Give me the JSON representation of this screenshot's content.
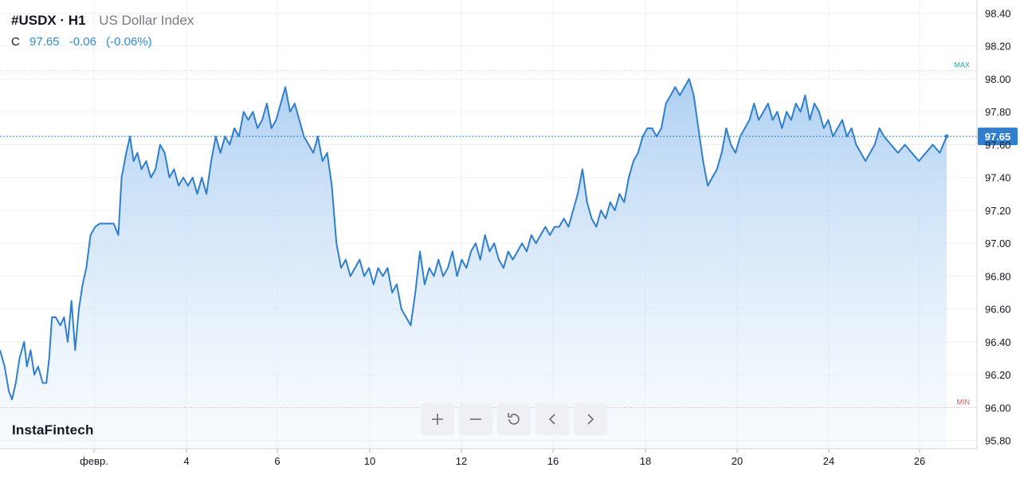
{
  "header": {
    "symbol": "#USDX · H1",
    "description": "US Dollar Index",
    "close_label": "C",
    "close_value": "97.65",
    "change": "-0.06",
    "change_pct": "(-0.06%)"
  },
  "brand": "InstaFintech",
  "controls": [
    {
      "name": "zoom-in-button",
      "icon": "plus-icon"
    },
    {
      "name": "zoom-out-button",
      "icon": "minus-icon"
    },
    {
      "name": "reset-button",
      "icon": "reset-icon"
    },
    {
      "name": "scroll-left-button",
      "icon": "chevron-left-icon"
    },
    {
      "name": "scroll-right-button",
      "icon": "chevron-right-icon"
    }
  ],
  "chart_data": {
    "type": "area",
    "ylim": [
      95.75,
      98.48
    ],
    "xlim": [
      0,
      27
    ],
    "y_ticks": [
      "95.80",
      "96.00",
      "96.20",
      "96.40",
      "96.60",
      "96.80",
      "97.00",
      "97.20",
      "97.40",
      "97.60",
      "97.80",
      "98.00",
      "98.20",
      "98.40"
    ],
    "x_ticks": [
      {
        "x": 2,
        "label": "февр."
      },
      {
        "x": 5,
        "label": "4"
      },
      {
        "x": 7,
        "label": "6"
      },
      {
        "x": 9,
        "label": "10"
      },
      {
        "x": 11,
        "label": "12"
      },
      {
        "x": 13,
        "label": "16"
      },
      {
        "x": 15,
        "label": "18"
      },
      {
        "x": 17,
        "label": "20"
      },
      {
        "x": 19,
        "label": "24"
      },
      {
        "x": 21,
        "label": "26"
      }
    ],
    "max_line": {
      "value": 98.05,
      "label": "MAX"
    },
    "min_line": {
      "value": 96.0,
      "label": "MIN"
    },
    "last_price": {
      "value": 97.65,
      "label": "97.65"
    },
    "grid": true,
    "colors": {
      "line": "#2f7fce",
      "fill": "#a9cdf2",
      "max": "#26a69a",
      "min": "#ef5350",
      "last": "#2f7fce"
    },
    "points": [
      [
        0.0,
        96.35
      ],
      [
        0.1,
        96.25
      ],
      [
        0.19,
        96.1
      ],
      [
        0.26,
        96.05
      ],
      [
        0.34,
        96.15
      ],
      [
        0.42,
        96.3
      ],
      [
        0.52,
        96.4
      ],
      [
        0.58,
        96.25
      ],
      [
        0.66,
        96.35
      ],
      [
        0.74,
        96.2
      ],
      [
        0.82,
        96.25
      ],
      [
        0.92,
        96.15
      ],
      [
        1.0,
        96.15
      ],
      [
        1.06,
        96.3
      ],
      [
        1.12,
        96.55
      ],
      [
        1.2,
        96.55
      ],
      [
        1.3,
        96.5
      ],
      [
        1.38,
        96.55
      ],
      [
        1.46,
        96.4
      ],
      [
        1.54,
        96.65
      ],
      [
        1.62,
        96.35
      ],
      [
        1.7,
        96.6
      ],
      [
        1.78,
        96.75
      ],
      [
        1.86,
        96.85
      ],
      [
        1.95,
        97.05
      ],
      [
        2.05,
        97.1
      ],
      [
        2.15,
        97.12
      ],
      [
        2.45,
        97.12
      ],
      [
        2.55,
        97.05
      ],
      [
        2.62,
        97.4
      ],
      [
        2.72,
        97.55
      ],
      [
        2.8,
        97.65
      ],
      [
        2.88,
        97.5
      ],
      [
        2.96,
        97.55
      ],
      [
        3.05,
        97.45
      ],
      [
        3.15,
        97.5
      ],
      [
        3.25,
        97.4
      ],
      [
        3.35,
        97.45
      ],
      [
        3.45,
        97.6
      ],
      [
        3.55,
        97.55
      ],
      [
        3.65,
        97.4
      ],
      [
        3.75,
        97.45
      ],
      [
        3.85,
        97.35
      ],
      [
        3.95,
        97.4
      ],
      [
        4.05,
        97.35
      ],
      [
        4.15,
        97.4
      ],
      [
        4.25,
        97.3
      ],
      [
        4.35,
        97.4
      ],
      [
        4.45,
        97.3
      ],
      [
        4.55,
        97.5
      ],
      [
        4.65,
        97.65
      ],
      [
        4.75,
        97.55
      ],
      [
        4.85,
        97.65
      ],
      [
        4.95,
        97.6
      ],
      [
        5.05,
        97.7
      ],
      [
        5.15,
        97.65
      ],
      [
        5.25,
        97.8
      ],
      [
        5.35,
        97.75
      ],
      [
        5.45,
        97.8
      ],
      [
        5.55,
        97.7
      ],
      [
        5.65,
        97.75
      ],
      [
        5.75,
        97.85
      ],
      [
        5.85,
        97.7
      ],
      [
        5.95,
        97.75
      ],
      [
        6.05,
        97.85
      ],
      [
        6.15,
        97.95
      ],
      [
        6.25,
        97.8
      ],
      [
        6.35,
        97.85
      ],
      [
        6.45,
        97.75
      ],
      [
        6.55,
        97.65
      ],
      [
        6.65,
        97.6
      ],
      [
        6.75,
        97.55
      ],
      [
        6.85,
        97.65
      ],
      [
        6.95,
        97.5
      ],
      [
        7.05,
        97.55
      ],
      [
        7.15,
        97.35
      ],
      [
        7.25,
        97.0
      ],
      [
        7.35,
        96.85
      ],
      [
        7.45,
        96.9
      ],
      [
        7.55,
        96.8
      ],
      [
        7.65,
        96.85
      ],
      [
        7.75,
        96.9
      ],
      [
        7.85,
        96.8
      ],
      [
        7.95,
        96.85
      ],
      [
        8.05,
        96.75
      ],
      [
        8.15,
        96.85
      ],
      [
        8.25,
        96.8
      ],
      [
        8.35,
        96.85
      ],
      [
        8.45,
        96.7
      ],
      [
        8.55,
        96.75
      ],
      [
        8.65,
        96.6
      ],
      [
        8.75,
        96.55
      ],
      [
        8.85,
        96.5
      ],
      [
        8.95,
        96.7
      ],
      [
        9.05,
        96.95
      ],
      [
        9.15,
        96.75
      ],
      [
        9.25,
        96.85
      ],
      [
        9.35,
        96.8
      ],
      [
        9.45,
        96.9
      ],
      [
        9.55,
        96.8
      ],
      [
        9.65,
        96.85
      ],
      [
        9.75,
        96.95
      ],
      [
        9.85,
        96.8
      ],
      [
        9.95,
        96.9
      ],
      [
        10.05,
        96.85
      ],
      [
        10.15,
        96.95
      ],
      [
        10.25,
        97.0
      ],
      [
        10.35,
        96.9
      ],
      [
        10.45,
        97.05
      ],
      [
        10.55,
        96.95
      ],
      [
        10.65,
        97.0
      ],
      [
        10.75,
        96.9
      ],
      [
        10.85,
        96.85
      ],
      [
        10.95,
        96.95
      ],
      [
        11.05,
        96.9
      ],
      [
        11.15,
        96.95
      ],
      [
        11.25,
        97.0
      ],
      [
        11.35,
        96.95
      ],
      [
        11.45,
        97.05
      ],
      [
        11.55,
        97.0
      ],
      [
        11.65,
        97.05
      ],
      [
        11.75,
        97.1
      ],
      [
        11.85,
        97.05
      ],
      [
        11.95,
        97.1
      ],
      [
        12.05,
        97.1
      ],
      [
        12.15,
        97.15
      ],
      [
        12.25,
        97.1
      ],
      [
        12.35,
        97.2
      ],
      [
        12.45,
        97.3
      ],
      [
        12.55,
        97.45
      ],
      [
        12.65,
        97.25
      ],
      [
        12.75,
        97.15
      ],
      [
        12.85,
        97.1
      ],
      [
        12.95,
        97.2
      ],
      [
        13.05,
        97.15
      ],
      [
        13.15,
        97.25
      ],
      [
        13.25,
        97.2
      ],
      [
        13.35,
        97.3
      ],
      [
        13.45,
        97.25
      ],
      [
        13.55,
        97.4
      ],
      [
        13.65,
        97.5
      ],
      [
        13.75,
        97.55
      ],
      [
        13.85,
        97.65
      ],
      [
        13.95,
        97.7
      ],
      [
        14.05,
        97.7
      ],
      [
        14.15,
        97.65
      ],
      [
        14.25,
        97.7
      ],
      [
        14.35,
        97.85
      ],
      [
        14.45,
        97.9
      ],
      [
        14.55,
        97.95
      ],
      [
        14.65,
        97.9
      ],
      [
        14.75,
        97.95
      ],
      [
        14.85,
        98.0
      ],
      [
        14.95,
        97.9
      ],
      [
        15.05,
        97.7
      ],
      [
        15.15,
        97.5
      ],
      [
        15.25,
        97.35
      ],
      [
        15.35,
        97.4
      ],
      [
        15.45,
        97.45
      ],
      [
        15.55,
        97.55
      ],
      [
        15.65,
        97.7
      ],
      [
        15.75,
        97.6
      ],
      [
        15.85,
        97.55
      ],
      [
        15.95,
        97.65
      ],
      [
        16.05,
        97.7
      ],
      [
        16.15,
        97.75
      ],
      [
        16.25,
        97.85
      ],
      [
        16.35,
        97.75
      ],
      [
        16.45,
        97.8
      ],
      [
        16.55,
        97.85
      ],
      [
        16.65,
        97.75
      ],
      [
        16.75,
        97.8
      ],
      [
        16.85,
        97.7
      ],
      [
        16.95,
        97.8
      ],
      [
        17.05,
        97.75
      ],
      [
        17.15,
        97.85
      ],
      [
        17.25,
        97.8
      ],
      [
        17.35,
        97.9
      ],
      [
        17.45,
        97.75
      ],
      [
        17.55,
        97.85
      ],
      [
        17.65,
        97.8
      ],
      [
        17.75,
        97.7
      ],
      [
        17.85,
        97.75
      ],
      [
        17.95,
        97.65
      ],
      [
        18.05,
        97.7
      ],
      [
        18.15,
        97.75
      ],
      [
        18.25,
        97.65
      ],
      [
        18.35,
        97.7
      ],
      [
        18.45,
        97.6
      ],
      [
        18.55,
        97.55
      ],
      [
        18.65,
        97.5
      ],
      [
        18.75,
        97.55
      ],
      [
        18.85,
        97.6
      ],
      [
        18.95,
        97.7
      ],
      [
        19.05,
        97.65
      ],
      [
        19.2,
        97.6
      ],
      [
        19.35,
        97.55
      ],
      [
        19.5,
        97.6
      ],
      [
        19.65,
        97.55
      ],
      [
        19.8,
        97.5
      ],
      [
        19.95,
        97.55
      ],
      [
        20.1,
        97.6
      ],
      [
        20.25,
        97.55
      ],
      [
        20.4,
        97.65
      ]
    ]
  }
}
